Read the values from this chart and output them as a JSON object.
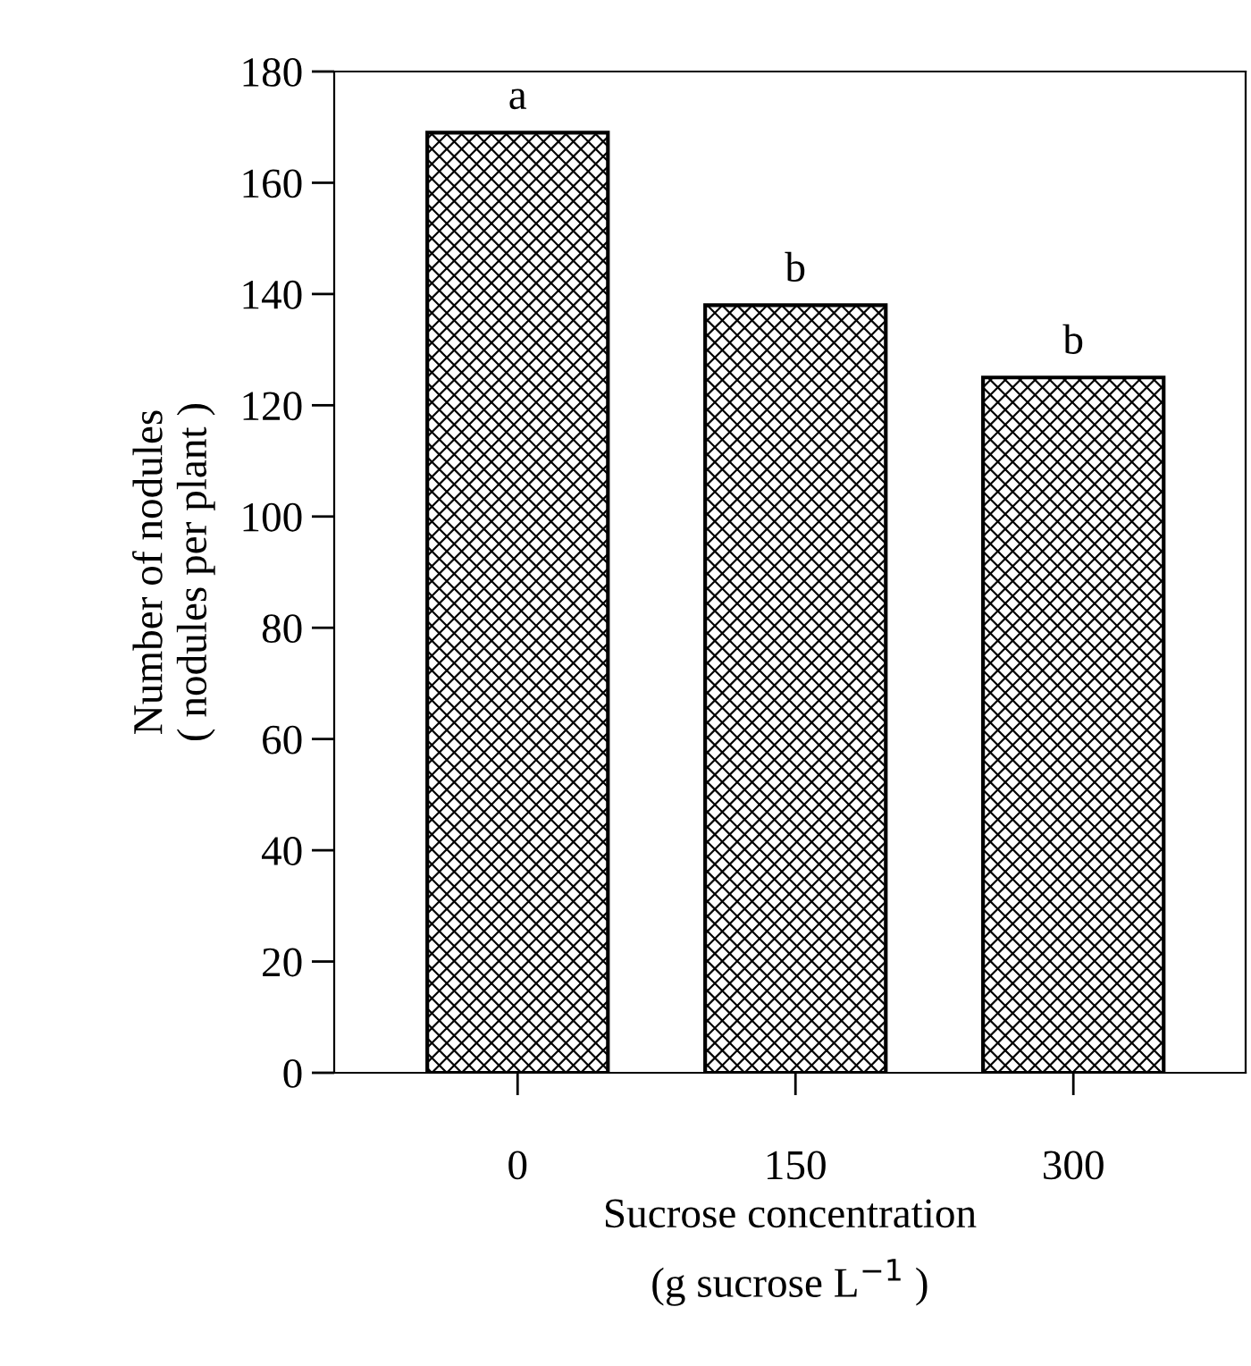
{
  "chart_data": {
    "type": "bar",
    "categories": [
      "0",
      "150",
      "300"
    ],
    "values": [
      169,
      138,
      125
    ],
    "color": "#000000",
    "xlabel": "Sucrose concentration\n(g sucrose L$^{−1}$ )",
    "ylabel": "Number of nodules\n( nodules per plant )",
    "ylim": [
      0,
      180
    ],
    "yticks": [
      0,
      20,
      40,
      60,
      80,
      100,
      120,
      140,
      160,
      180
    ],
    "grid": false,
    "legend": false,
    "annotations": [
      {
        "text": "a",
        "x": "0",
        "y": 169
      },
      {
        "text": "b",
        "x": "150",
        "y": 138
      },
      {
        "text": "b",
        "x": "300",
        "y": 125
      }
    ]
  }
}
